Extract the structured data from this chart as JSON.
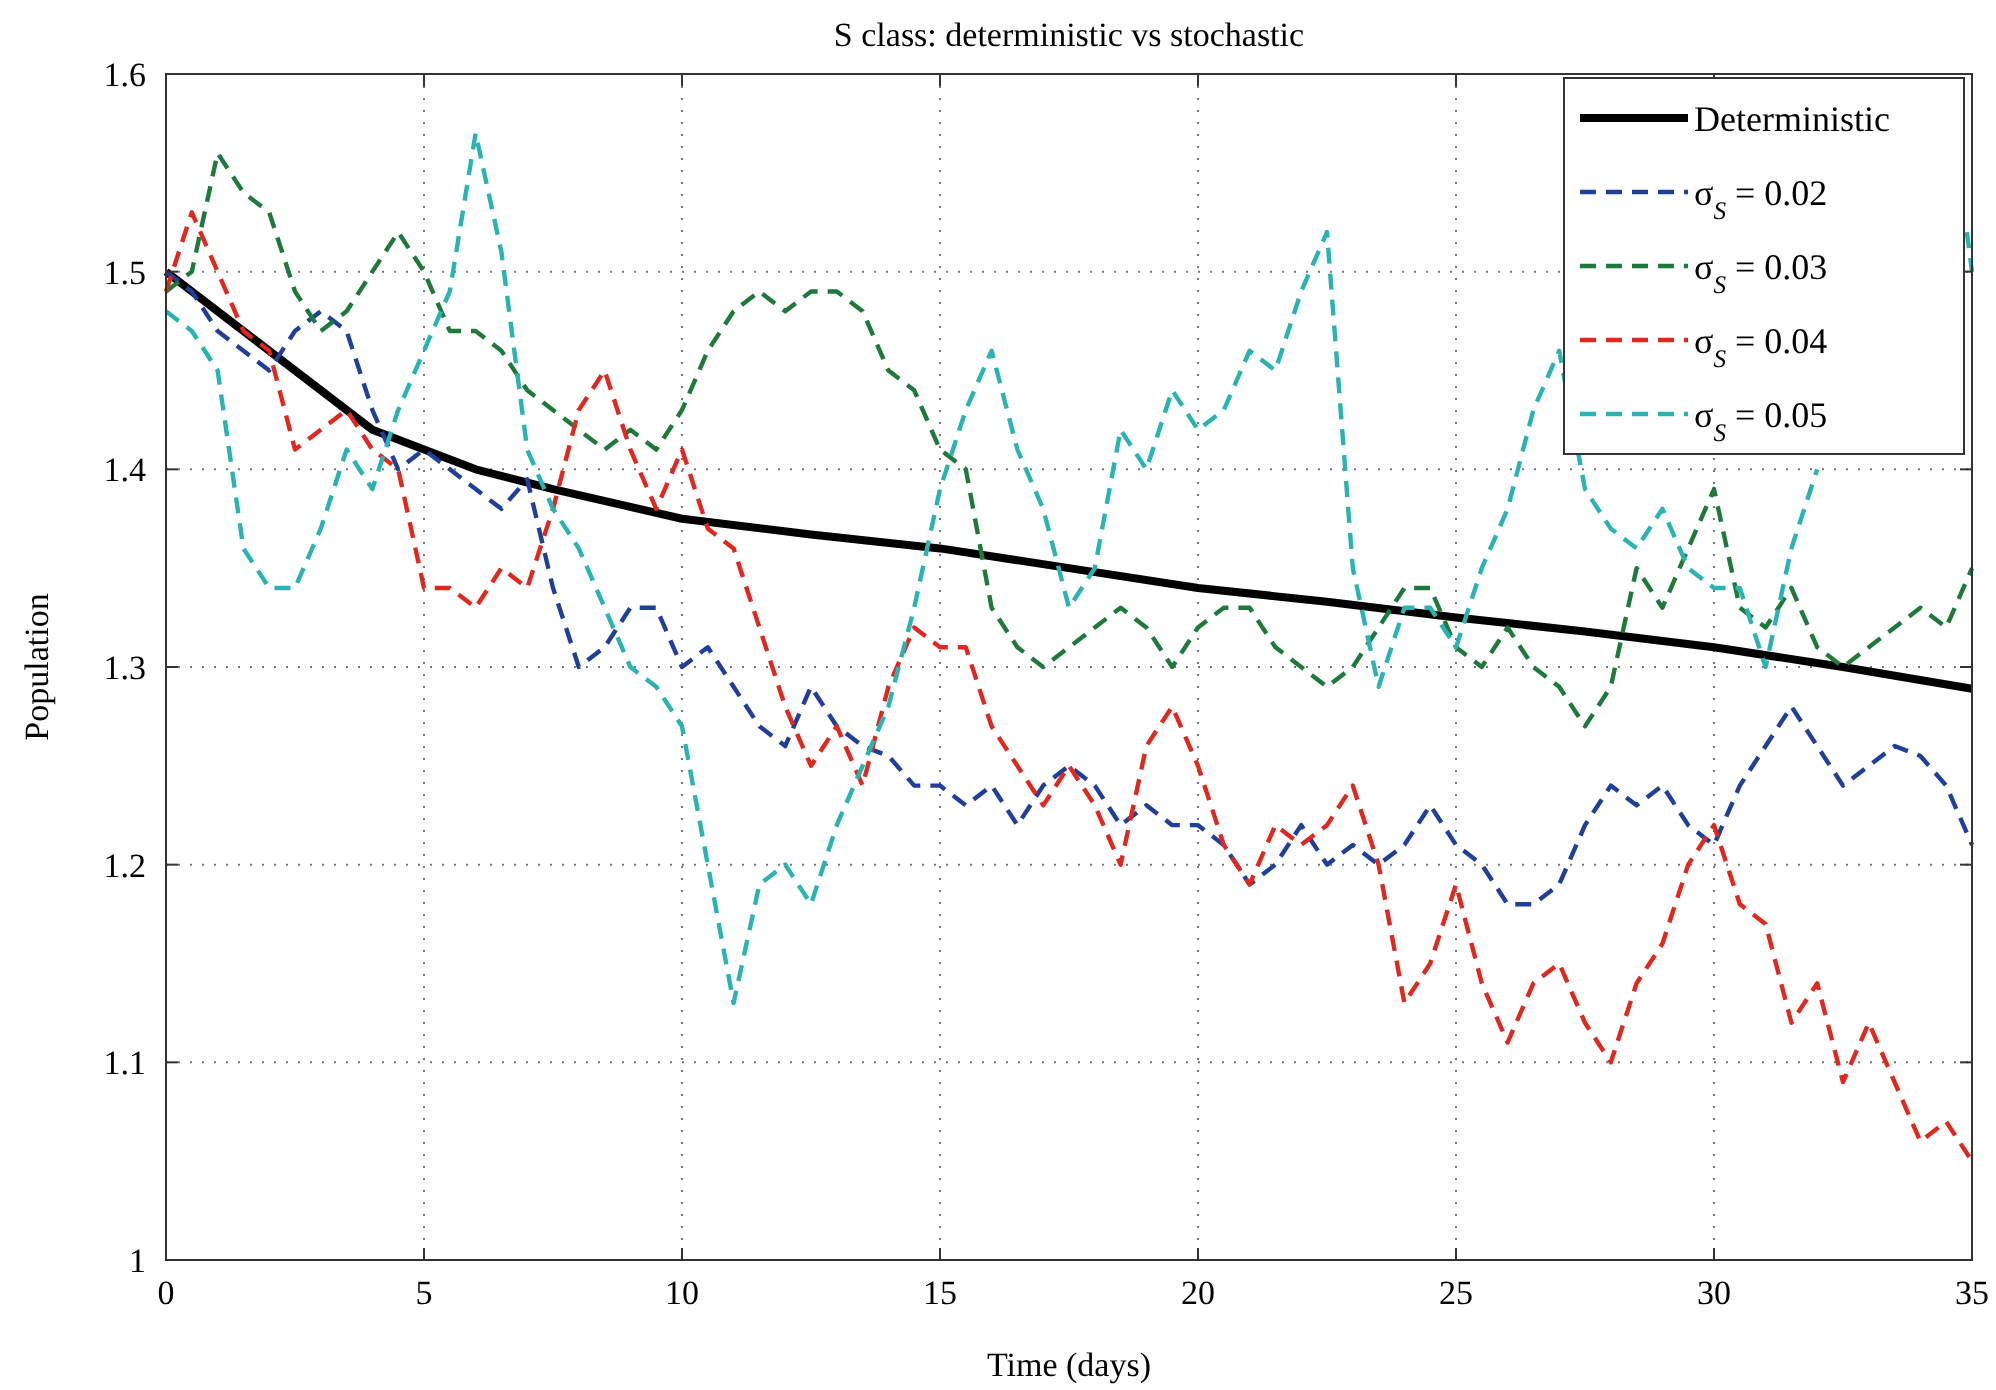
{
  "chart_data": {
    "type": "line",
    "title": "S class: deterministic vs stochastic",
    "xlabel": "Time (days)",
    "ylabel": "Population",
    "x": [
      0,
      0.5,
      1,
      1.5,
      2,
      2.5,
      3,
      3.5,
      4,
      4.5,
      5,
      5.5,
      6,
      6.5,
      7,
      7.5,
      8,
      8.5,
      9,
      9.5,
      10,
      10.5,
      11,
      11.5,
      12,
      12.5,
      13,
      13.5,
      14,
      14.5,
      15,
      15.5,
      16,
      16.5,
      17,
      17.5,
      18,
      18.5,
      19,
      19.5,
      20,
      20.5,
      21,
      21.5,
      22,
      22.5,
      23,
      23.5,
      24,
      24.5,
      25,
      25.5,
      26,
      26.5,
      27,
      27.5,
      28,
      28.5,
      29,
      29.5,
      30,
      30.5,
      31,
      31.5,
      32,
      32.5,
      33,
      33.5,
      34,
      34.5,
      35
    ],
    "xlim": [
      0,
      35
    ],
    "xticks": [
      0,
      5,
      10,
      15,
      20,
      25,
      30,
      35
    ],
    "ylim": [
      1,
      1.6
    ],
    "yticks": [
      1,
      1.1,
      1.2,
      1.3,
      1.4,
      1.5,
      1.6
    ],
    "grid": true,
    "legend": "top right",
    "series": [
      {
        "name": "Deterministic",
        "color": "#000000",
        "line_style": "solid",
        "x": [
          0,
          0.5,
          1,
          1.5,
          2,
          2.5,
          3,
          4,
          5,
          6,
          7.5,
          10,
          12.5,
          15,
          17.5,
          20,
          22.5,
          25,
          27.5,
          30,
          32.5,
          35
        ],
        "values": [
          1.5,
          1.49,
          1.48,
          1.47,
          1.46,
          1.45,
          1.44,
          1.42,
          1.41,
          1.4,
          1.39,
          1.375,
          1.367,
          1.36,
          1.35,
          1.34,
          1.333,
          1.325,
          1.318,
          1.31,
          1.3,
          1.289
        ]
      },
      {
        "name": "σ$_{S}$ = 0.02",
        "color": "#1f3f9a",
        "line_style": "dashed",
        "values": [
          1.5,
          1.49,
          1.47,
          1.46,
          1.45,
          1.47,
          1.48,
          1.47,
          1.43,
          1.4,
          1.41,
          1.4,
          1.39,
          1.38,
          1.395,
          1.34,
          1.3,
          1.31,
          1.33,
          1.33,
          1.3,
          1.31,
          1.29,
          1.27,
          1.26,
          1.29,
          1.27,
          1.26,
          1.255,
          1.24,
          1.24,
          1.23,
          1.24,
          1.22,
          1.24,
          1.25,
          1.24,
          1.22,
          1.23,
          1.22,
          1.22,
          1.21,
          1.19,
          1.2,
          1.22,
          1.2,
          1.21,
          1.2,
          1.21,
          1.23,
          1.21,
          1.2,
          1.18,
          1.18,
          1.19,
          1.22,
          1.24,
          1.23,
          1.24,
          1.22,
          1.21,
          1.24,
          1.26,
          1.28,
          1.26,
          1.24,
          1.25,
          1.26,
          1.255,
          1.24,
          1.21
        ]
      },
      {
        "name": "σ$_{S}$ = 0.03",
        "color": "#1e7a3a",
        "line_style": "dashed",
        "values": [
          1.49,
          1.5,
          1.56,
          1.54,
          1.53,
          1.49,
          1.47,
          1.48,
          1.5,
          1.52,
          1.5,
          1.47,
          1.47,
          1.46,
          1.44,
          1.43,
          1.42,
          1.41,
          1.42,
          1.41,
          1.43,
          1.46,
          1.48,
          1.49,
          1.48,
          1.49,
          1.49,
          1.48,
          1.45,
          1.44,
          1.41,
          1.4,
          1.33,
          1.31,
          1.3,
          1.31,
          1.32,
          1.33,
          1.32,
          1.3,
          1.32,
          1.33,
          1.33,
          1.31,
          1.3,
          1.29,
          1.3,
          1.32,
          1.34,
          1.34,
          1.31,
          1.3,
          1.32,
          1.3,
          1.29,
          1.27,
          1.29,
          1.35,
          1.33,
          1.36,
          1.39,
          1.33,
          1.32,
          1.34,
          1.31,
          1.3,
          1.31,
          1.32,
          1.33,
          1.32,
          1.35
        ]
      },
      {
        "name": "σ$_{S}$ = 0.04",
        "color": "#e0281f",
        "line_style": "dashed",
        "values": [
          1.49,
          1.53,
          1.5,
          1.47,
          1.46,
          1.41,
          1.42,
          1.43,
          1.41,
          1.4,
          1.34,
          1.34,
          1.33,
          1.35,
          1.34,
          1.38,
          1.43,
          1.45,
          1.41,
          1.38,
          1.41,
          1.37,
          1.36,
          1.32,
          1.28,
          1.25,
          1.27,
          1.24,
          1.29,
          1.32,
          1.31,
          1.31,
          1.27,
          1.25,
          1.23,
          1.25,
          1.23,
          1.2,
          1.26,
          1.28,
          1.25,
          1.21,
          1.19,
          1.22,
          1.21,
          1.22,
          1.24,
          1.2,
          1.13,
          1.15,
          1.19,
          1.14,
          1.11,
          1.14,
          1.15,
          1.12,
          1.1,
          1.14,
          1.16,
          1.2,
          1.22,
          1.18,
          1.17,
          1.12,
          1.14,
          1.09,
          1.12,
          1.09,
          1.06,
          1.07,
          1.05
        ]
      },
      {
        "name": "σ$_{S}$ = 0.05",
        "color": "#2ab3b3",
        "line_style": "dashed",
        "x": [
          0,
          0.5,
          1,
          1.5,
          2,
          2.5,
          3,
          3.5,
          4,
          4.5,
          5,
          5.5,
          6,
          6.5,
          7,
          7.5,
          8,
          8.5,
          9,
          9.5,
          10,
          10.5,
          11,
          11.5,
          12,
          12.5,
          13,
          13.5,
          14,
          14.5,
          15,
          15.5,
          16,
          16.5,
          17,
          17.5,
          18,
          18.5,
          19,
          19.5,
          20,
          20.5,
          21,
          21.5,
          22,
          22.5,
          23,
          23.5,
          24,
          24.5,
          25,
          25.5,
          26,
          26.5,
          27,
          27.5,
          28,
          28.5,
          29,
          29.5,
          30,
          30.5,
          31,
          31.5,
          32,
          32.5,
          33,
          33.5,
          34,
          34.5,
          34.9,
          35
        ],
        "values": [
          1.48,
          1.47,
          1.45,
          1.36,
          1.34,
          1.34,
          1.37,
          1.41,
          1.39,
          1.43,
          1.46,
          1.49,
          1.57,
          1.51,
          1.41,
          1.38,
          1.36,
          1.33,
          1.3,
          1.29,
          1.27,
          1.2,
          1.13,
          1.19,
          1.2,
          1.18,
          1.22,
          1.25,
          1.28,
          1.33,
          1.39,
          1.43,
          1.46,
          1.41,
          1.38,
          1.33,
          1.35,
          1.42,
          1.4,
          1.44,
          1.42,
          1.43,
          1.46,
          1.45,
          1.49,
          1.52,
          1.35,
          1.29,
          1.33,
          1.33,
          1.31,
          1.35,
          1.38,
          1.43,
          1.46,
          1.39,
          1.37,
          1.36,
          1.38,
          1.35,
          1.34,
          1.34,
          1.3,
          1.36,
          1.4,
          null,
          null,
          null,
          null,
          null,
          1.52,
          1.5
        ]
      }
    ]
  }
}
